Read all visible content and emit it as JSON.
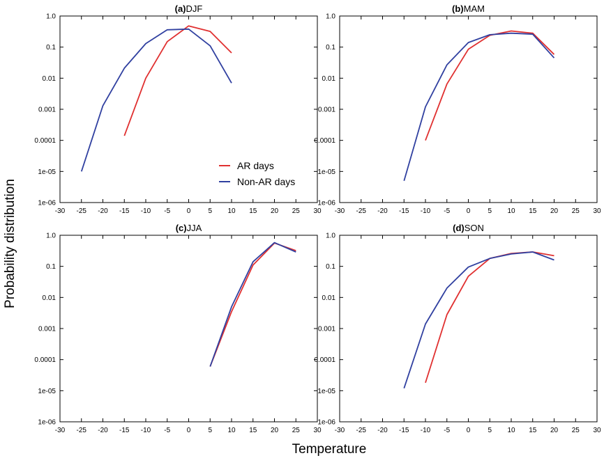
{
  "figure": {
    "xlabel": "Temperature",
    "ylabel": "Probability distribution"
  },
  "legend": {
    "entries": [
      {
        "label": "AR days",
        "color": "#e03030"
      },
      {
        "label": "Non-AR days",
        "color": "#3040a0"
      }
    ]
  },
  "chart_data": [
    {
      "type": "line",
      "panel_label": "(a)",
      "panel_name": "DJF",
      "yscale": "log",
      "xlim": [
        -30,
        30
      ],
      "ylim": [
        1e-06,
        1.0
      ],
      "xticks": [
        "-30",
        "-25",
        "-20",
        "-15",
        "-10",
        "-5",
        "0",
        "5",
        "10",
        "15",
        "20",
        "25",
        "30"
      ],
      "yticks": [
        "1.0",
        "0.1",
        "0.01",
        "0.001",
        "0.0001",
        "1e-05",
        "1e-06"
      ],
      "legend_position": "lower-right",
      "series": [
        {
          "name": "AR days",
          "color": "#e03030",
          "x": [
            -15,
            -10,
            -5,
            0,
            5,
            10
          ],
          "y": [
            0.00014,
            0.01,
            0.15,
            0.48,
            0.32,
            0.065
          ]
        },
        {
          "name": "Non-AR days",
          "color": "#3040a0",
          "x": [
            -25,
            -20,
            -15,
            -10,
            -5,
            0,
            5,
            10
          ],
          "y": [
            1e-05,
            0.0013,
            0.021,
            0.13,
            0.36,
            0.38,
            0.11,
            0.007
          ]
        }
      ]
    },
    {
      "type": "line",
      "panel_label": "(b)",
      "panel_name": "MAM",
      "yscale": "log",
      "xlim": [
        -30,
        30
      ],
      "ylim": [
        1e-06,
        1.0
      ],
      "xticks": [
        "-30",
        "-25",
        "-20",
        "-15",
        "-10",
        "-5",
        "0",
        "5",
        "10",
        "15",
        "20",
        "25",
        "30"
      ],
      "yticks": [
        "1.0",
        "0.1",
        "0.01",
        "0.001",
        "0.0001",
        "1e-05",
        "1e-06"
      ],
      "series": [
        {
          "name": "AR days",
          "color": "#e03030",
          "x": [
            -10,
            -5,
            0,
            5,
            10,
            15,
            20
          ],
          "y": [
            0.0001,
            0.0065,
            0.085,
            0.24,
            0.33,
            0.28,
            0.058
          ]
        },
        {
          "name": "Non-AR days",
          "color": "#3040a0",
          "x": [
            -15,
            -10,
            -5,
            0,
            5,
            10,
            15,
            20
          ],
          "y": [
            5e-06,
            0.0012,
            0.027,
            0.14,
            0.25,
            0.28,
            0.26,
            0.045
          ]
        }
      ]
    },
    {
      "type": "line",
      "panel_label": "(c)",
      "panel_name": "JJA",
      "yscale": "log",
      "xlim": [
        -30,
        30
      ],
      "ylim": [
        1e-06,
        1.0
      ],
      "xticks": [
        "-30",
        "-25",
        "-20",
        "-15",
        "-10",
        "-5",
        "0",
        "5",
        "10",
        "15",
        "20",
        "25",
        "30"
      ],
      "yticks": [
        "1.0",
        "0.1",
        "0.01",
        "0.001",
        "0.0001",
        "1e-05",
        "1e-06"
      ],
      "series": [
        {
          "name": "AR days",
          "color": "#e03030",
          "x": [
            5,
            10,
            15,
            20,
            25
          ],
          "y": [
            6e-05,
            0.0035,
            0.11,
            0.56,
            0.32
          ]
        },
        {
          "name": "Non-AR days",
          "color": "#3040a0",
          "x": [
            5,
            10,
            15,
            20,
            25
          ],
          "y": [
            6e-05,
            0.005,
            0.14,
            0.58,
            0.29
          ]
        }
      ]
    },
    {
      "type": "line",
      "panel_label": "(d)",
      "panel_name": "SON",
      "yscale": "log",
      "xlim": [
        -30,
        30
      ],
      "ylim": [
        1e-06,
        1.0
      ],
      "xticks": [
        "-30",
        "-25",
        "-20",
        "-15",
        "-10",
        "-5",
        "0",
        "5",
        "10",
        "15",
        "20",
        "25",
        "30"
      ],
      "yticks": [
        "1.0",
        "0.1",
        "0.01",
        "0.001",
        "0.0001",
        "1e-05",
        "1e-06"
      ],
      "series": [
        {
          "name": "AR days",
          "color": "#e03030",
          "x": [
            -10,
            -5,
            0,
            5,
            10,
            15,
            20
          ],
          "y": [
            1.8e-05,
            0.0028,
            0.048,
            0.18,
            0.26,
            0.29,
            0.22
          ]
        },
        {
          "name": "Non-AR days",
          "color": "#3040a0",
          "x": [
            -15,
            -10,
            -5,
            0,
            5,
            10,
            15,
            20
          ],
          "y": [
            1.2e-05,
            0.0014,
            0.02,
            0.095,
            0.18,
            0.25,
            0.29,
            0.16
          ]
        }
      ]
    }
  ]
}
